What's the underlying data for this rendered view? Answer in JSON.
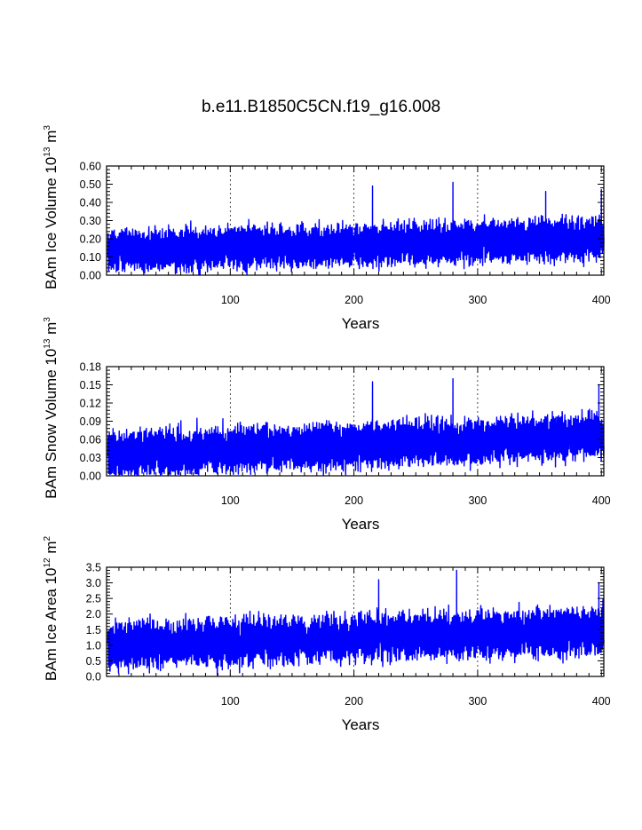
{
  "title": "b.e11.B1850C5CN.f19_g16.008",
  "line_color": "#0000ff",
  "chart_data": [
    {
      "type": "line",
      "series": [
        {
          "values_note": "",
          "values": []
        }
      ],
      "xlabel": "Years",
      "ylabel_prefix": "BAm Ice Volume 10",
      "ylabel_exp": "13",
      "ylabel_unit": " m",
      "ylabel_unit_exp": "3",
      "xlim": [
        0,
        402
      ],
      "ylim": [
        0.0,
        0.6
      ],
      "xticks": [
        100,
        200,
        300,
        400
      ],
      "xtick_labels": [
        "100",
        "200",
        "300",
        "400"
      ],
      "yticks": [
        0.0,
        0.1,
        0.2,
        0.3,
        0.4,
        0.5,
        0.6
      ],
      "ytick_labels": [
        "0.00",
        "0.10",
        "0.20",
        "0.30",
        "0.40",
        "0.50",
        "0.60"
      ],
      "xgrid_dashed": [
        100,
        200,
        300
      ],
      "profile": {
        "base": 0.13,
        "trend": 0.07,
        "amp": 0.085,
        "noise": 0.7,
        "max": 0.51,
        "spikes": [
          [
            280,
            0.51
          ],
          [
            215,
            0.49
          ],
          [
            400,
            0.47
          ],
          [
            355,
            0.46
          ]
        ]
      }
    },
    {
      "type": "line",
      "series": [
        {
          "values": []
        }
      ],
      "xlabel": "Years",
      "ylabel_prefix": "BAm Snow Volume 10",
      "ylabel_exp": "13",
      "ylabel_unit": " m",
      "ylabel_unit_exp": "3",
      "xlim": [
        0,
        402
      ],
      "ylim": [
        0.0,
        0.18
      ],
      "xticks": [
        100,
        200,
        300,
        400
      ],
      "xtick_labels": [
        "100",
        "200",
        "300",
        "400"
      ],
      "yticks": [
        0.0,
        0.03,
        0.06,
        0.09,
        0.12,
        0.15,
        0.18
      ],
      "ytick_labels": [
        "0.00",
        "0.03",
        "0.06",
        "0.09",
        "0.12",
        "0.15",
        "0.18"
      ],
      "xgrid_dashed": [
        100,
        200,
        300
      ],
      "profile": {
        "base": 0.035,
        "trend": 0.03,
        "amp": 0.028,
        "noise": 0.7,
        "max": 0.16,
        "spikes": [
          [
            280,
            0.16
          ],
          [
            215,
            0.155
          ],
          [
            398,
            0.15
          ]
        ]
      }
    },
    {
      "type": "line",
      "series": [
        {
          "values": []
        }
      ],
      "xlabel": "Years",
      "ylabel_prefix": "BAm Ice Area 10",
      "ylabel_exp": "12",
      "ylabel_unit": " m",
      "ylabel_unit_exp": "2",
      "xlim": [
        0,
        402
      ],
      "ylim": [
        0.0,
        3.5
      ],
      "xticks": [
        100,
        200,
        300,
        400
      ],
      "xtick_labels": [
        "100",
        "200",
        "300",
        "400"
      ],
      "yticks": [
        0.0,
        0.5,
        1.0,
        1.5,
        2.0,
        2.5,
        3.0,
        3.5
      ],
      "ytick_labels": [
        "0.0",
        "0.5",
        "1.0",
        "1.5",
        "2.0",
        "2.5",
        "3.0",
        "3.5"
      ],
      "xgrid_dashed": [
        100,
        200,
        300
      ],
      "profile": {
        "base": 1.0,
        "trend": 0.45,
        "amp": 0.55,
        "noise": 0.75,
        "max": 3.4,
        "spikes": [
          [
            283,
            3.4
          ],
          [
            220,
            3.1
          ],
          [
            398,
            3.0
          ]
        ]
      }
    }
  ]
}
